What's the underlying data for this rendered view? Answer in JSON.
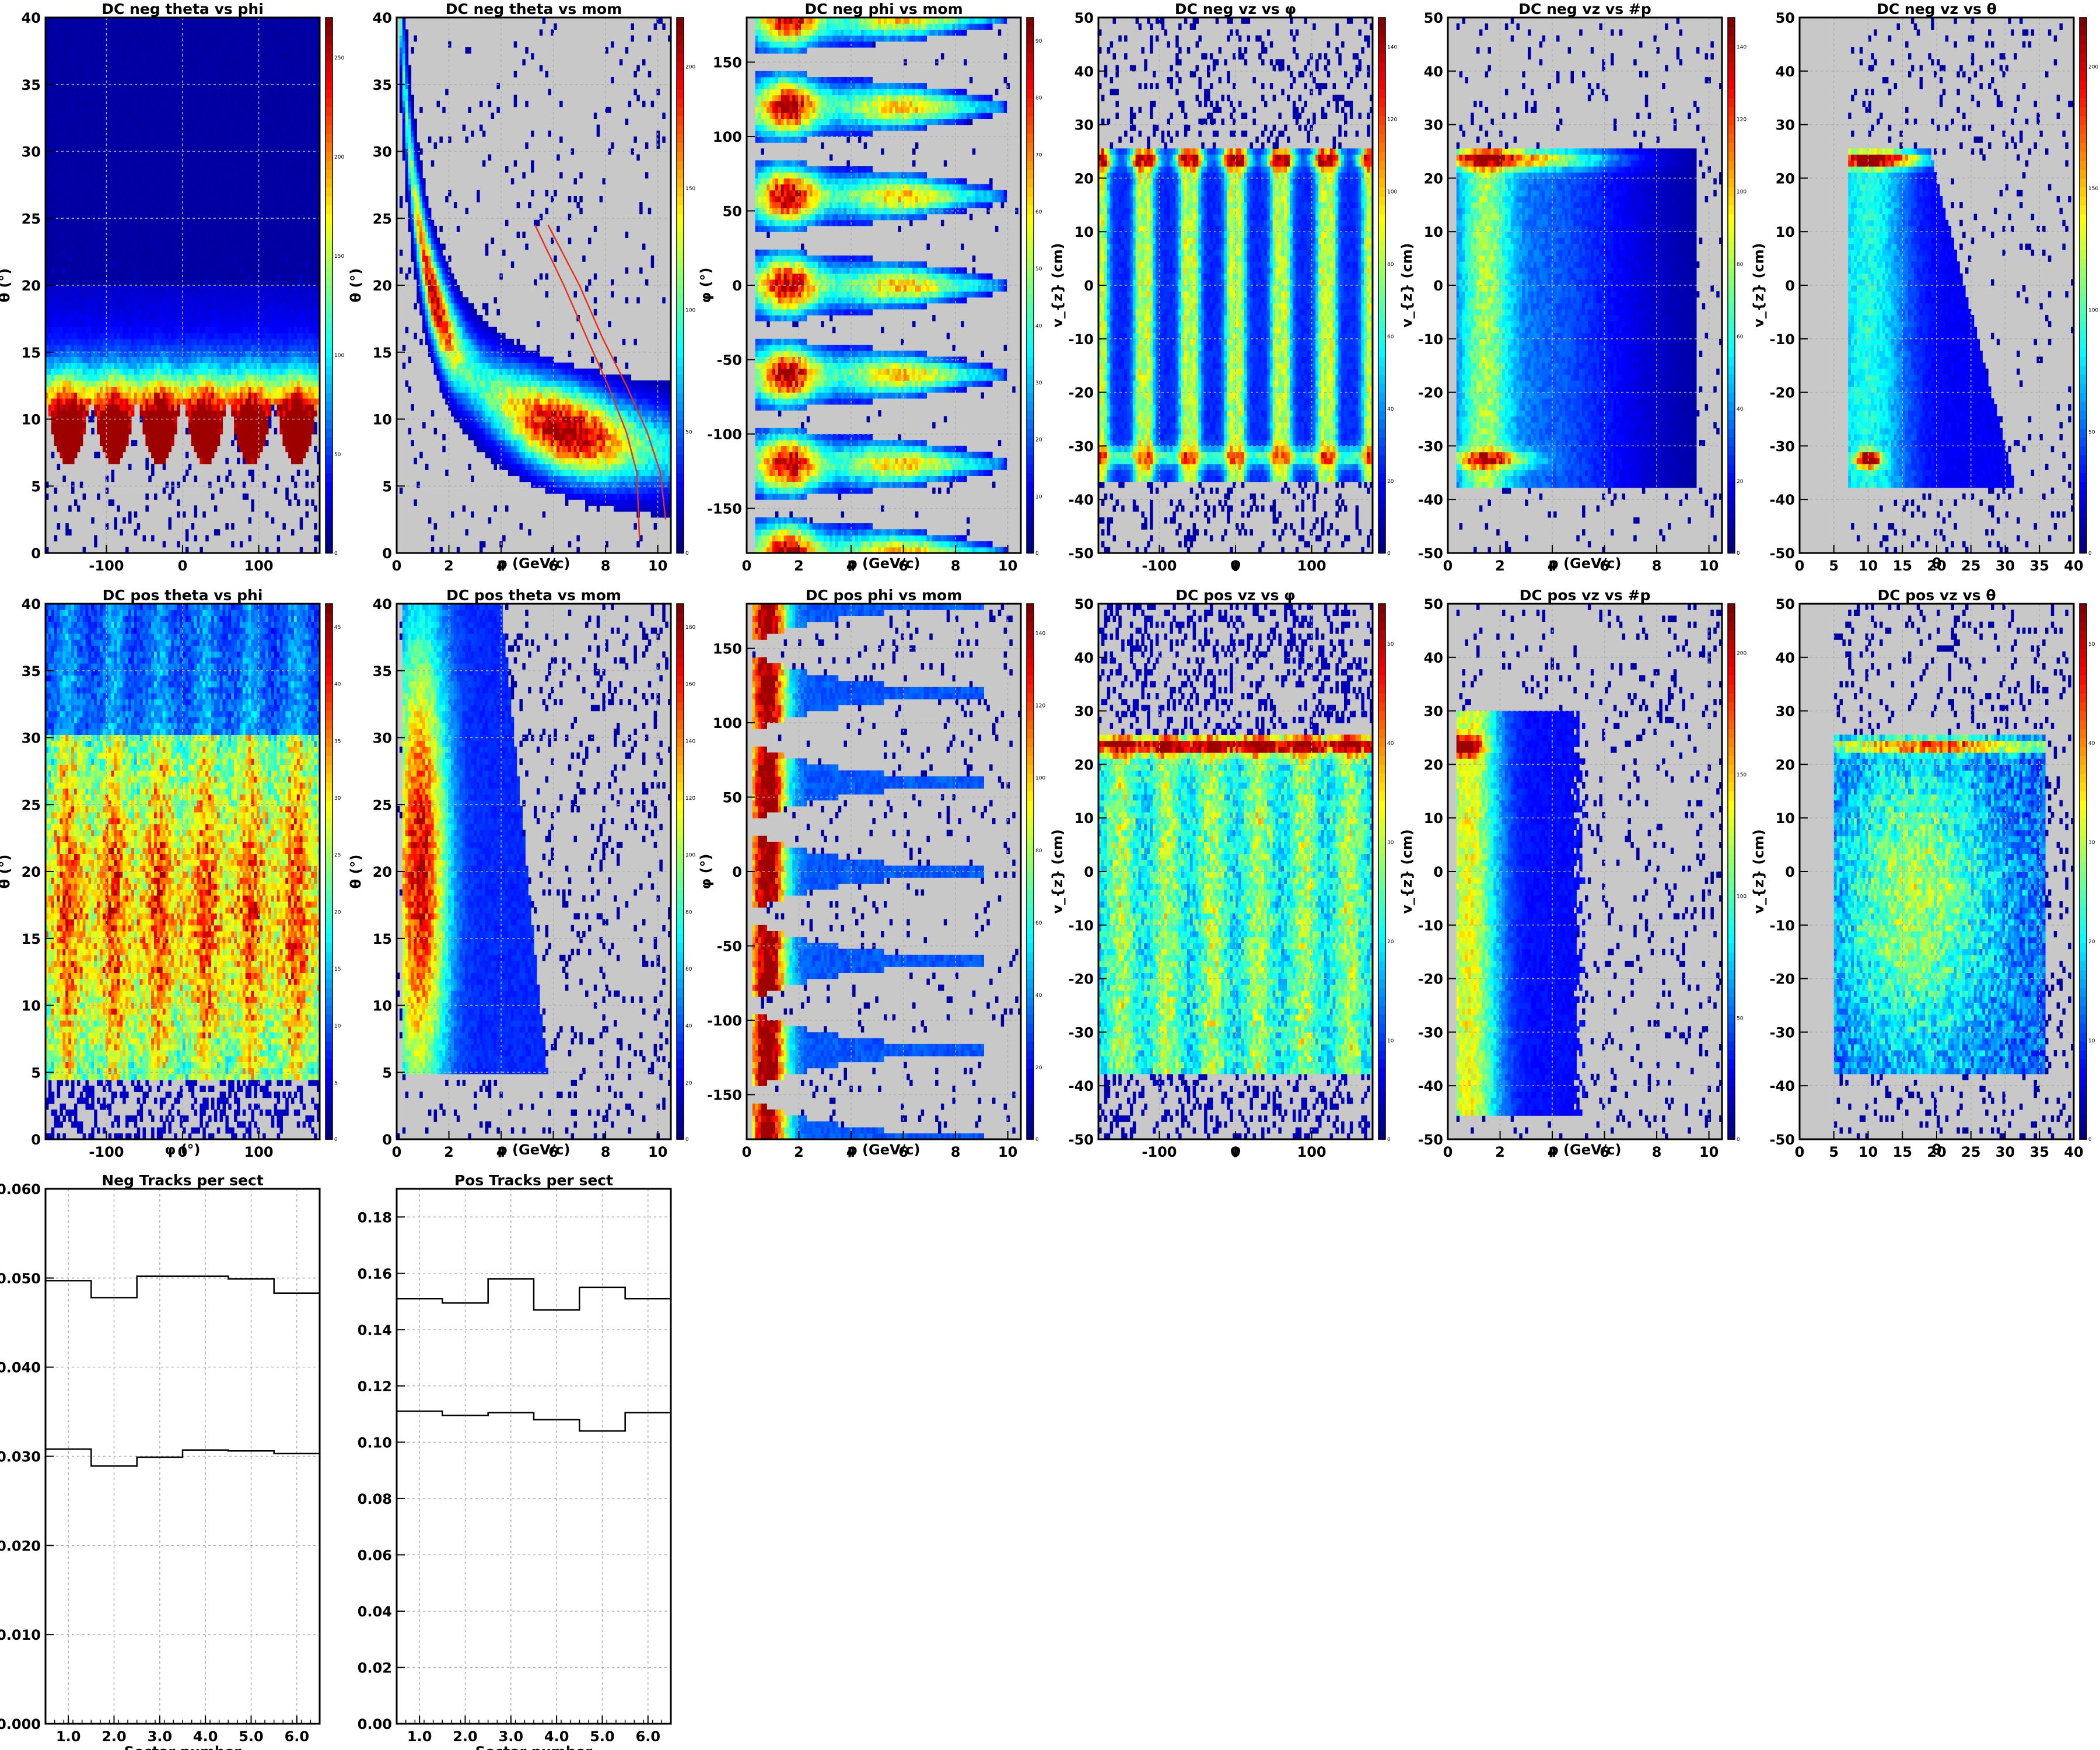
{
  "chart_data": [
    {
      "type": "heatmap",
      "title": "DC neg theta vs phi",
      "xlabel": "",
      "ylabel": "θ (°)",
      "xlim": [
        -180,
        180
      ],
      "ylim": [
        0,
        40
      ],
      "xticks": [
        -100,
        0,
        100
      ],
      "yticks": [
        0,
        5,
        10,
        15,
        20,
        25,
        30,
        35,
        40
      ],
      "zticks": [
        "50",
        "100",
        "150",
        "200",
        "250"
      ],
      "grid": true
    },
    {
      "type": "heatmap",
      "title": "DC neg theta vs mom",
      "xlabel": "p (GeV/c)",
      "ylabel": "θ (°)",
      "xlim": [
        0,
        10.5
      ],
      "ylim": [
        0,
        40
      ],
      "xticks": [
        0,
        2,
        4,
        6,
        8,
        10
      ],
      "yticks": [
        0,
        5,
        10,
        15,
        20,
        25,
        30,
        35,
        40
      ],
      "zticks": [
        "50",
        "100",
        "150",
        "200"
      ],
      "grid": true
    },
    {
      "type": "heatmap",
      "title": "DC neg phi vs mom",
      "xlabel": "p (GeV/c)",
      "ylabel": "φ (°)",
      "xlim": [
        0,
        10.5
      ],
      "ylim": [
        -180,
        180
      ],
      "xticks": [
        0,
        2,
        4,
        6,
        8,
        10
      ],
      "yticks": [
        -150,
        -100,
        -50,
        0,
        50,
        100,
        150
      ],
      "zticks": [
        "10",
        "20",
        "30",
        "40",
        "50",
        "60",
        "70",
        "80",
        "90"
      ],
      "grid": true
    },
    {
      "type": "heatmap",
      "title": "DC neg vz vs φ",
      "xlabel": "φ",
      "ylabel": "v_{z} (cm)",
      "xlim": [
        -180,
        180
      ],
      "ylim": [
        -50,
        50
      ],
      "xticks": [
        -100,
        0,
        100
      ],
      "yticks": [
        -50,
        -40,
        -30,
        -20,
        -10,
        0,
        10,
        20,
        30,
        40,
        50
      ],
      "zticks": [
        "20",
        "40",
        "60",
        "80",
        "100",
        "120",
        "140"
      ],
      "grid": true
    },
    {
      "type": "heatmap",
      "title": "DC neg vz vs #p",
      "xlabel": "p (GeV/c)",
      "ylabel": "v_{z} (cm)",
      "xlim": [
        0,
        10.5
      ],
      "ylim": [
        -50,
        50
      ],
      "xticks": [
        0,
        2,
        4,
        6,
        8,
        10
      ],
      "yticks": [
        -50,
        -40,
        -30,
        -20,
        -10,
        0,
        10,
        20,
        30,
        40,
        50
      ],
      "zticks": [
        "20",
        "40",
        "60",
        "80",
        "100",
        "120",
        "140"
      ],
      "grid": true
    },
    {
      "type": "heatmap",
      "title": "DC neg vz vs θ",
      "xlabel": "θ",
      "ylabel": "v_{z} (cm)",
      "xlim": [
        0,
        40
      ],
      "ylim": [
        -50,
        50
      ],
      "xticks": [
        0,
        5,
        10,
        15,
        20,
        25,
        30,
        35,
        40
      ],
      "yticks": [
        -50,
        -40,
        -30,
        -20,
        -10,
        0,
        10,
        20,
        30,
        40,
        50
      ],
      "zticks": [
        "50",
        "100",
        "150",
        "200"
      ],
      "grid": true
    },
    {
      "type": "heatmap",
      "title": "DC pos theta vs phi",
      "xlabel": "φ (°)",
      "ylabel": "θ (°)",
      "xlim": [
        -180,
        180
      ],
      "ylim": [
        0,
        40
      ],
      "xticks": [
        -100,
        0,
        100
      ],
      "yticks": [
        0,
        5,
        10,
        15,
        20,
        25,
        30,
        35,
        40
      ],
      "zticks": [
        "5",
        "10",
        "15",
        "20",
        "25",
        "30",
        "35",
        "40",
        "45"
      ],
      "grid": true
    },
    {
      "type": "heatmap",
      "title": "DC pos theta vs mom",
      "xlabel": "p (GeV/c)",
      "ylabel": "θ (°)",
      "xlim": [
        0,
        10.5
      ],
      "ylim": [
        0,
        40
      ],
      "xticks": [
        0,
        2,
        4,
        6,
        8,
        10
      ],
      "yticks": [
        0,
        5,
        10,
        15,
        20,
        25,
        30,
        35,
        40
      ],
      "zticks": [
        "20",
        "40",
        "60",
        "80",
        "100",
        "120",
        "140",
        "160",
        "180"
      ],
      "grid": true
    },
    {
      "type": "heatmap",
      "title": "DC pos phi vs mom",
      "xlabel": "p (GeV/c)",
      "ylabel": "φ (°)",
      "xlim": [
        0,
        10.5
      ],
      "ylim": [
        -180,
        180
      ],
      "xticks": [
        0,
        2,
        4,
        6,
        8,
        10
      ],
      "yticks": [
        -150,
        -100,
        -50,
        0,
        50,
        100,
        150
      ],
      "zticks": [
        "20",
        "40",
        "60",
        "80",
        "100",
        "120",
        "140"
      ],
      "grid": true
    },
    {
      "type": "heatmap",
      "title": "DC pos vz vs φ",
      "xlabel": "φ",
      "ylabel": "v_{z} (cm)",
      "xlim": [
        -180,
        180
      ],
      "ylim": [
        -50,
        50
      ],
      "xticks": [
        -100,
        0,
        100
      ],
      "yticks": [
        -50,
        -40,
        -30,
        -20,
        -10,
        0,
        10,
        20,
        30,
        40,
        50
      ],
      "zticks": [
        "10",
        "20",
        "30",
        "40",
        "50"
      ],
      "grid": true
    },
    {
      "type": "heatmap",
      "title": "DC pos vz vs #p",
      "xlabel": "p (GeV/c)",
      "ylabel": "v_{z} (cm)",
      "xlim": [
        0,
        10.5
      ],
      "ylim": [
        -50,
        50
      ],
      "xticks": [
        0,
        2,
        4,
        6,
        8,
        10
      ],
      "yticks": [
        -50,
        -40,
        -30,
        -20,
        -10,
        0,
        10,
        20,
        30,
        40,
        50
      ],
      "zticks": [
        "50",
        "100",
        "150",
        "200"
      ],
      "grid": true
    },
    {
      "type": "heatmap",
      "title": "DC pos vz vs θ",
      "xlabel": "θ",
      "ylabel": "v_{z} (cm)",
      "xlim": [
        0,
        40
      ],
      "ylim": [
        -50,
        50
      ],
      "xticks": [
        0,
        5,
        10,
        15,
        20,
        25,
        30,
        35,
        40
      ],
      "yticks": [
        -50,
        -40,
        -30,
        -20,
        -10,
        0,
        10,
        20,
        30,
        40,
        50
      ],
      "zticks": [
        "10",
        "20",
        "30",
        "40",
        "50"
      ],
      "grid": true
    },
    {
      "type": "line",
      "title": "Neg Tracks per sect",
      "xlabel": "Sector number",
      "ylabel": "",
      "xlim": [
        0.5,
        6.5
      ],
      "ylim": [
        0,
        0.06
      ],
      "xticks": [
        "1.0",
        "2.0",
        "3.0",
        "4.0",
        "5.0",
        "6.0"
      ],
      "yticks": [
        "0.000",
        "0.010",
        "0.020",
        "0.030",
        "0.040",
        "0.050",
        "0.060"
      ],
      "grid": true,
      "categories": [
        1,
        2,
        3,
        4,
        5,
        6
      ],
      "series": [
        {
          "values": [
            0.0497,
            0.0478,
            0.0502,
            0.0502,
            0.0499,
            0.0483
          ]
        },
        {
          "values": [
            0.0308,
            0.0289,
            0.0299,
            0.0307,
            0.0306,
            0.0303
          ]
        }
      ]
    },
    {
      "type": "line",
      "title": "Pos Tracks per sect",
      "xlabel": "Sector number",
      "ylabel": "",
      "xlim": [
        0.5,
        6.5
      ],
      "ylim": [
        0,
        0.19
      ],
      "xticks": [
        "1.0",
        "2.0",
        "3.0",
        "4.0",
        "5.0",
        "6.0"
      ],
      "yticks": [
        "0.00",
        "0.02",
        "0.04",
        "0.06",
        "0.08",
        "0.10",
        "0.12",
        "0.14",
        "0.16",
        "0.18"
      ],
      "grid": true,
      "categories": [
        1,
        2,
        3,
        4,
        5,
        6
      ],
      "series": [
        {
          "values": [
            0.151,
            0.1495,
            0.158,
            0.147,
            0.155,
            0.151
          ]
        },
        {
          "values": [
            0.111,
            0.1095,
            0.1105,
            0.108,
            0.104,
            0.1105
          ]
        }
      ]
    }
  ]
}
